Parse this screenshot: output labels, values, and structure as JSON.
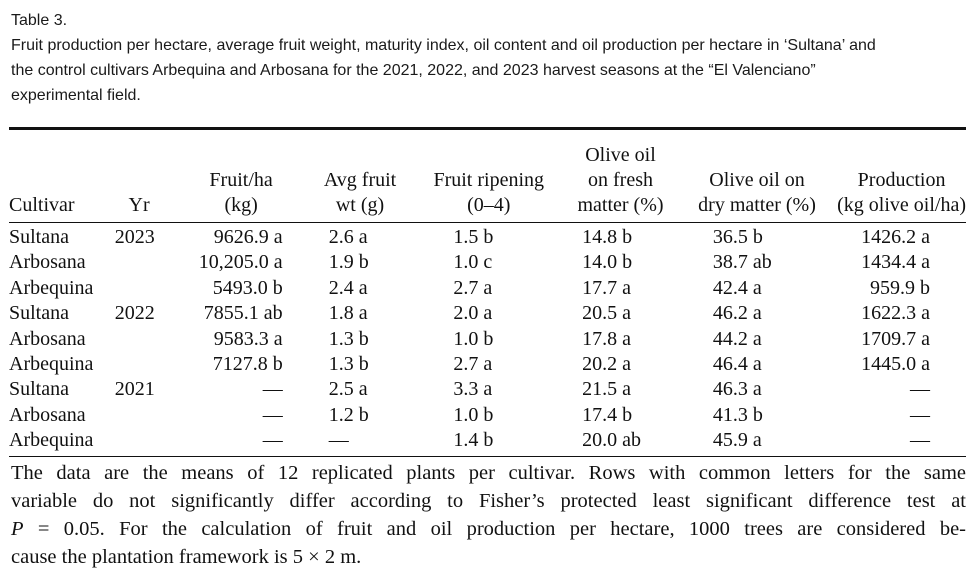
{
  "caption": {
    "label": "Table 3.",
    "title_lines": [
      "Fruit production per hectare, average fruit weight, maturity index, oil content and oil production per hectare in ‘Sultana’ and",
      "the control cultivars Arbequina and Arbosana for the 2021, 2022, and 2023 harvest seasons at the “El Valenciano”",
      "experimental field."
    ]
  },
  "table": {
    "headers": {
      "cultivar": [
        "Cultivar"
      ],
      "yr": [
        "Yr"
      ],
      "fruit_ha": [
        "Fruit/ha",
        "(kg)"
      ],
      "avg_fruit_wt": [
        "Avg fruit",
        "wt (g)"
      ],
      "fruit_ripening": [
        "Fruit ripening",
        "(0–4)"
      ],
      "oil_fresh": [
        "Olive oil",
        "on fresh",
        "matter (%)"
      ],
      "oil_dry": [
        "Olive oil on",
        "dry matter (%)"
      ],
      "production": [
        "Production",
        "(kg olive oil/ha)"
      ]
    },
    "rows": [
      {
        "cultivar": "Sultana",
        "yr": "2023",
        "fruit_ha": "9626.9 a",
        "avg_fruit_wt": "2.6 a",
        "fruit_ripening": "1.5 b",
        "oil_fresh": "14.8 b",
        "oil_dry": "36.5 b",
        "production": "1426.2 a"
      },
      {
        "cultivar": "Arbosana",
        "yr": "",
        "fruit_ha": "10,205.0 a",
        "avg_fruit_wt": "1.9 b",
        "fruit_ripening": "1.0 c",
        "oil_fresh": "14.0 b",
        "oil_dry": "38.7 ab",
        "production": "1434.4 a"
      },
      {
        "cultivar": "Arbequina",
        "yr": "",
        "fruit_ha": "5493.0 b",
        "avg_fruit_wt": "2.4 a",
        "fruit_ripening": "2.7 a",
        "oil_fresh": "17.7 a",
        "oil_dry": "42.4 a",
        "production": "959.9 b"
      },
      {
        "cultivar": "Sultana",
        "yr": "2022",
        "fruit_ha": "7855.1 ab",
        "avg_fruit_wt": "1.8 a",
        "fruit_ripening": "2.0 a",
        "oil_fresh": "20.5 a",
        "oil_dry": "46.2 a",
        "production": "1622.3 a"
      },
      {
        "cultivar": "Arbosana",
        "yr": "",
        "fruit_ha": "9583.3 a",
        "avg_fruit_wt": "1.3 b",
        "fruit_ripening": "1.0 b",
        "oil_fresh": "17.8 a",
        "oil_dry": "44.2 a",
        "production": "1709.7 a"
      },
      {
        "cultivar": "Arbequina",
        "yr": "",
        "fruit_ha": "7127.8 b",
        "avg_fruit_wt": "1.3 b",
        "fruit_ripening": "2.7 a",
        "oil_fresh": "20.2 a",
        "oil_dry": "46.4 a",
        "production": "1445.0 a"
      },
      {
        "cultivar": "Sultana",
        "yr": "2021",
        "fruit_ha": "—",
        "avg_fruit_wt": "2.5 a",
        "fruit_ripening": "3.3 a",
        "oil_fresh": "21.5 a",
        "oil_dry": "46.3 a",
        "production": "—"
      },
      {
        "cultivar": "Arbosana",
        "yr": "",
        "fruit_ha": "—",
        "avg_fruit_wt": "1.2 b",
        "fruit_ripening": "1.0 b",
        "oil_fresh": "17.4 b",
        "oil_dry": "41.3 b",
        "production": "—"
      },
      {
        "cultivar": "Arbequina",
        "yr": "",
        "fruit_ha": "—",
        "avg_fruit_wt": "—",
        "fruit_ripening": "1.4 b",
        "oil_fresh": "20.0 ab",
        "oil_dry": "45.9 a",
        "production": "—"
      }
    ]
  },
  "footnote": {
    "line1": "The data are the means of 12 replicated plants per cultivar. Rows with common letters for the same",
    "line2": "variable do not significantly differ according to Fisher’s protected least significant difference test at",
    "line3_var": "P",
    "line3_rest": " = 0.05. For the calculation of fruit and oil production per hectare, 1000 trees are considered be-",
    "line4": "cause the plantation framework is 5 × 2 m."
  }
}
